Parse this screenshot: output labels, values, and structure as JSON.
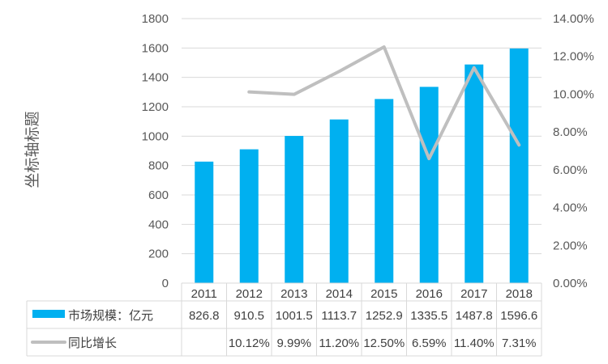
{
  "chart_data": {
    "type": "bar",
    "title": "",
    "ylabel": "坐标轴标题",
    "categories": [
      "2011",
      "2012",
      "2013",
      "2014",
      "2015",
      "2016",
      "2017",
      "2018"
    ],
    "ylim": [
      0,
      1800
    ],
    "yticks": [
      "0",
      "200",
      "400",
      "600",
      "800",
      "1000",
      "1200",
      "1400",
      "1600",
      "1800"
    ],
    "y2lim": [
      0,
      0.14
    ],
    "y2ticks": [
      "0.00%",
      "2.00%",
      "4.00%",
      "6.00%",
      "8.00%",
      "10.00%",
      "12.00%",
      "14.00%"
    ],
    "grid": true,
    "legend": "data-table",
    "series": [
      {
        "name": "市场规模：亿元",
        "type": "bar",
        "axis": "left",
        "color": "#00B0F0",
        "values": [
          826.8,
          910.5,
          1001.5,
          1113.7,
          1252.9,
          1335.5,
          1487.8,
          1596.6
        ],
        "labels": [
          "826.8",
          "910.5",
          "1001.5",
          "1113.7",
          "1252.9",
          "1335.5",
          "1487.8",
          "1596.6"
        ]
      },
      {
        "name": "同比增长",
        "type": "line",
        "axis": "right",
        "color": "#BFBFBF",
        "values": [
          null,
          0.1012,
          0.0999,
          0.112,
          0.125,
          0.0659,
          0.114,
          0.0731
        ],
        "labels": [
          "",
          "10.12%",
          "9.99%",
          "11.20%",
          "12.50%",
          "6.59%",
          "11.40%",
          "7.31%"
        ]
      }
    ]
  }
}
